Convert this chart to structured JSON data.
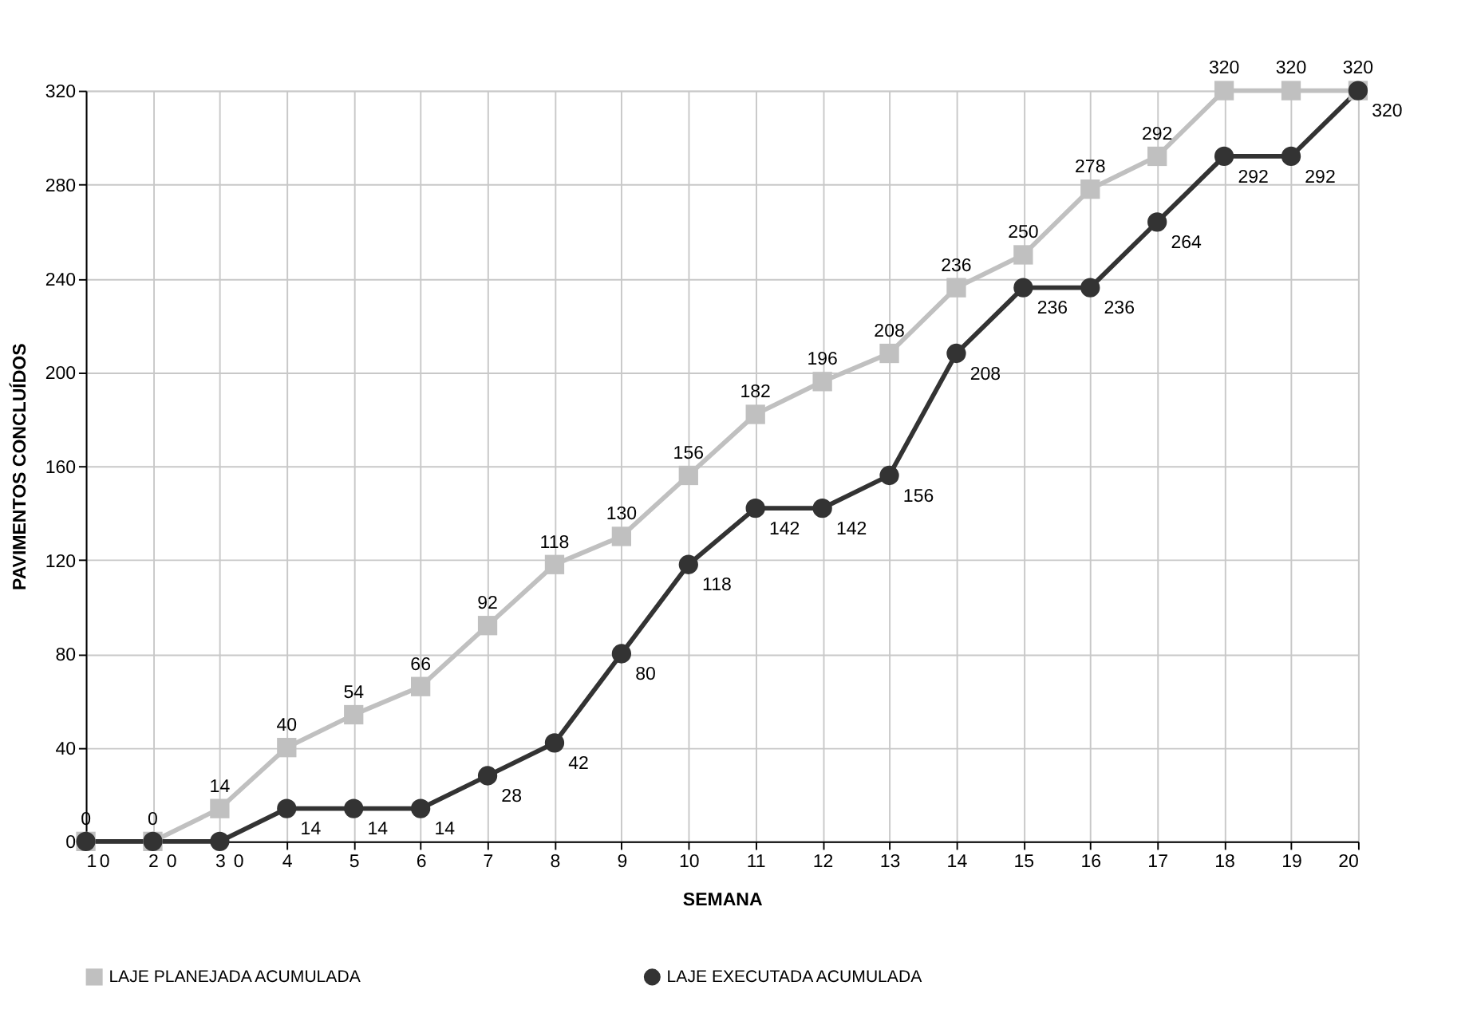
{
  "chart_data": {
    "type": "line",
    "xlabel": "SEMANA",
    "ylabel": "PAVIMENTOS CONCLUÍDOS",
    "x": [
      1,
      2,
      3,
      4,
      5,
      6,
      7,
      8,
      9,
      10,
      11,
      12,
      13,
      14,
      15,
      16,
      17,
      18,
      19,
      20
    ],
    "xlim": [
      1,
      20
    ],
    "xticks": [
      1,
      2,
      3,
      4,
      5,
      6,
      7,
      8,
      9,
      10,
      11,
      12,
      13,
      14,
      15,
      16,
      17,
      18,
      19,
      20
    ],
    "ylim": [
      0,
      320
    ],
    "yticks": [
      0,
      40,
      80,
      120,
      160,
      200,
      240,
      280,
      320
    ],
    "grid": true,
    "legend": "bottom",
    "data_labels": true,
    "line_style": "solid",
    "series": [
      {
        "name": "LAJE PLANEJADA ACUMULADA",
        "color": "#c0c0c0",
        "marker": "square",
        "values": [
          0,
          0,
          14,
          40,
          54,
          66,
          92,
          118,
          130,
          156,
          182,
          196,
          208,
          236,
          250,
          278,
          292,
          320,
          320,
          320
        ]
      },
      {
        "name": "LAJE EXECUTADA ACUMULADA",
        "color": "#333333",
        "marker": "circle",
        "values": [
          0,
          0,
          0,
          14,
          14,
          14,
          28,
          42,
          80,
          118,
          142,
          142,
          156,
          208,
          236,
          236,
          264,
          292,
          292,
          320
        ]
      }
    ]
  }
}
